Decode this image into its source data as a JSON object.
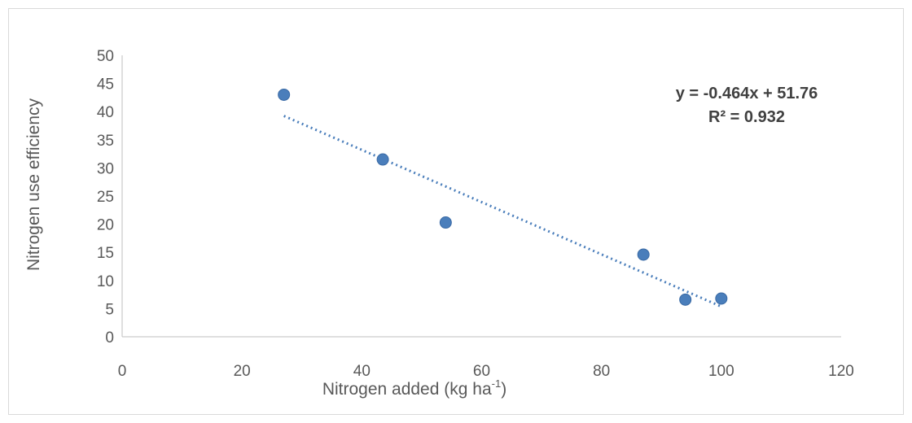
{
  "chart_data": {
    "type": "scatter",
    "xlabel": "Nitrogen added (kg ha",
    "xlabel_sup": "-1",
    "xlabel_close": ")",
    "ylabel": "Nitrogen use efficiency",
    "xlim": [
      0,
      120
    ],
    "ylim": [
      0,
      50
    ],
    "x_ticks": [
      0,
      20,
      40,
      60,
      80,
      100,
      120
    ],
    "y_ticks": [
      0,
      5,
      10,
      15,
      20,
      25,
      30,
      35,
      40,
      45,
      50
    ],
    "grid": false,
    "legend": "none",
    "points": [
      {
        "x": 27,
        "y": 43
      },
      {
        "x": 43.5,
        "y": 31.5
      },
      {
        "x": 54,
        "y": 20.3
      },
      {
        "x": 87,
        "y": 14.6
      },
      {
        "x": 94,
        "y": 6.6
      },
      {
        "x": 100,
        "y": 6.8
      }
    ],
    "trendline": {
      "type": "linear",
      "slope": -0.464,
      "intercept": 51.76,
      "x_range": [
        27,
        100
      ],
      "style": "dotted",
      "equation_label": "y = -0.464x + 51.76",
      "r2_label": "R² = 0.932"
    },
    "colors": {
      "marker": "#4a7ebb",
      "trendline": "#4a7ebb",
      "axis": "#bfbfbf",
      "text": "#595959",
      "annotation": "#404040"
    }
  }
}
